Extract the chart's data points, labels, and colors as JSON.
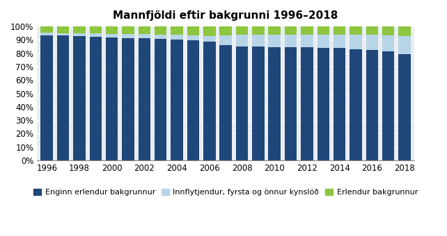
{
  "title": "Mannfjöldi eftir bakgrunni 1996–2018",
  "years": [
    1996,
    1997,
    1998,
    1999,
    2000,
    2001,
    2002,
    2003,
    2004,
    2005,
    2006,
    2007,
    2008,
    2009,
    2010,
    2011,
    2012,
    2013,
    2014,
    2015,
    2016,
    2017,
    2018
  ],
  "series1": [
    93.5,
    93.1,
    92.7,
    92.3,
    91.9,
    91.5,
    91.1,
    90.7,
    90.3,
    89.5,
    88.5,
    86.3,
    85.0,
    84.8,
    84.7,
    84.6,
    84.5,
    84.1,
    83.8,
    83.0,
    82.5,
    81.2,
    79.5
  ],
  "series2": [
    1.8,
    2.0,
    2.2,
    2.4,
    2.6,
    2.8,
    3.0,
    3.2,
    3.4,
    3.8,
    4.5,
    7.2,
    8.8,
    9.2,
    9.2,
    9.2,
    9.4,
    9.6,
    9.9,
    10.7,
    11.2,
    12.2,
    13.5
  ],
  "series3": [
    4.7,
    4.9,
    5.1,
    5.3,
    5.5,
    5.7,
    5.9,
    6.1,
    6.3,
    6.7,
    7.0,
    6.5,
    6.2,
    6.0,
    6.1,
    6.2,
    6.1,
    6.3,
    6.3,
    6.3,
    6.3,
    6.6,
    7.0
  ],
  "color1": "#1F477A",
  "color2": "#B8D4E8",
  "color3": "#8DC63F",
  "legend1": "Enginn erlendur bakgrunnur",
  "legend2": "Innflytjendur, fyrsta og önnur kynslóð",
  "legend3": "Erlendur bakgrunnur",
  "plot_bg": "#E8EDF2",
  "fig_bg": "#FFFFFF"
}
